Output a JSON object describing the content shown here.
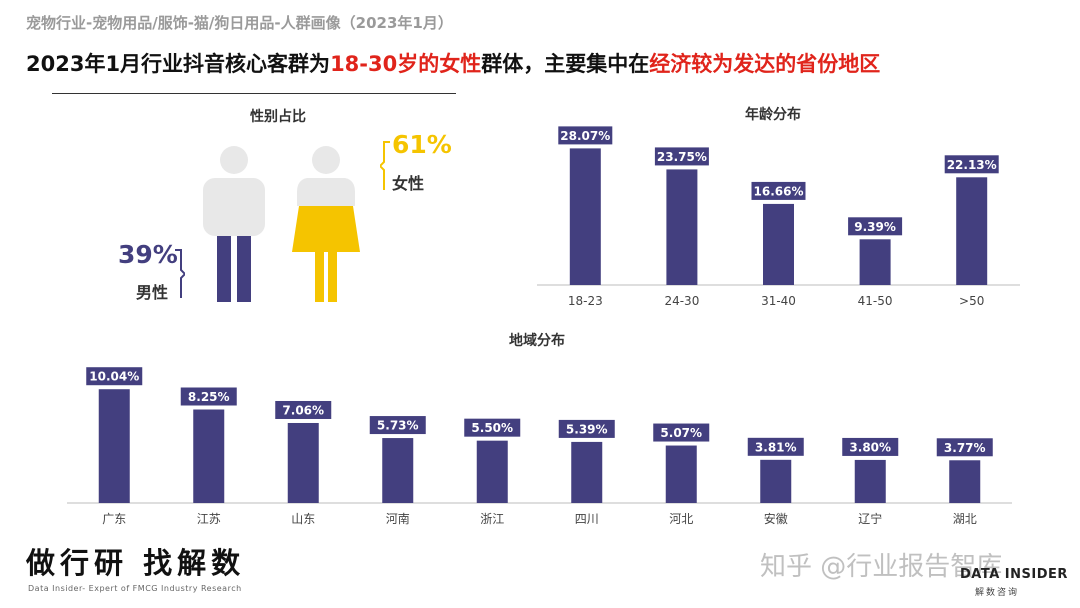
{
  "header": {
    "subtitle": "宠物行业-宠物用品/服饰-猫/狗日用品-人群画像（2023年1月）",
    "headline_part1": "2023年1月行业抖音核心客群为",
    "headline_red1": "18-30岁的女性",
    "headline_part2": "群体，主要集中在",
    "headline_red2": "经济较为发达的省份地区"
  },
  "gender": {
    "title": "性别占比",
    "female_pct": "61%",
    "female_label": "女性",
    "male_pct": "39%",
    "male_label": "男性",
    "female_value": 61,
    "male_value": 39
  },
  "colors": {
    "bar": "#433f7f",
    "female": "#f5c400",
    "male": "#433f7f",
    "figure_gray": "#e8e8e8",
    "red": "#e0241b"
  },
  "chart_data": [
    {
      "type": "bar",
      "title": "年龄分布",
      "categories": [
        "18-23",
        "24-30",
        "31-40",
        "41-50",
        ">50"
      ],
      "values": [
        28.07,
        23.75,
        16.66,
        9.39,
        22.13
      ],
      "labels": [
        "28.07%",
        "23.75%",
        "16.66%",
        "9.39%",
        "22.13%"
      ],
      "ylim": [
        0,
        30
      ],
      "xlabel": "",
      "ylabel": ""
    },
    {
      "type": "bar",
      "title": "地域分布",
      "categories": [
        "广东",
        "江苏",
        "山东",
        "河南",
        "浙江",
        "四川",
        "河北",
        "安徽",
        "辽宁",
        "湖北"
      ],
      "values": [
        10.04,
        8.25,
        7.06,
        5.73,
        5.5,
        5.39,
        5.07,
        3.81,
        3.8,
        3.77
      ],
      "labels": [
        "10.04%",
        "8.25%",
        "7.06%",
        "5.73%",
        "5.50%",
        "5.39%",
        "5.07%",
        "3.81%",
        "3.80%",
        "3.77%"
      ],
      "ylim": [
        0,
        10.5
      ],
      "xlabel": "",
      "ylabel": ""
    }
  ],
  "footer": {
    "slogan": "做行研 找解数",
    "slogan_sub": "Data Insider- Expert of FMCG Industry Research",
    "watermark": "知乎 @行业报告智库",
    "brand": "DATA INSIDER",
    "brand_sub": "解数咨询"
  }
}
